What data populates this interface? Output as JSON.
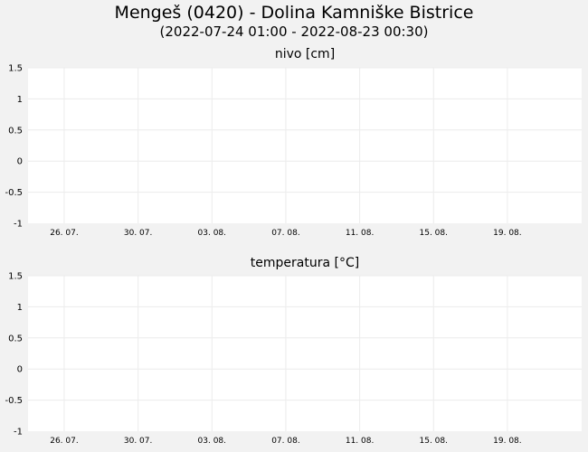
{
  "header": {
    "title": "Mengeš (0420) - Dolina Kamniške Bistrice",
    "subtitle": "(2022-07-24 01:00 - 2022-08-23 00:30)"
  },
  "chart_data": [
    {
      "type": "line",
      "title": "nivo [cm]",
      "ylim": [
        -1,
        1.5
      ],
      "yticks": [
        "1.5",
        "1",
        "0.5",
        "0",
        "-0.5",
        "-1"
      ],
      "xlim": [
        "2022-07-24 01:00",
        "2022-08-23 00:30"
      ],
      "xticks": [
        {
          "date": "2022-07-26",
          "label": "26. 07."
        },
        {
          "date": "2022-07-30",
          "label": "30. 07."
        },
        {
          "date": "2022-08-03",
          "label": "03. 08."
        },
        {
          "date": "2022-08-07",
          "label": "07. 08."
        },
        {
          "date": "2022-08-11",
          "label": "11. 08."
        },
        {
          "date": "2022-08-15",
          "label": "15. 08."
        },
        {
          "date": "2022-08-19",
          "label": "19. 08."
        }
      ],
      "grid": true,
      "series": []
    },
    {
      "type": "line",
      "title": "temperatura [°C]",
      "ylim": [
        -1,
        1.5
      ],
      "yticks": [
        "1.5",
        "1",
        "0.5",
        "0",
        "-0.5",
        "-1"
      ],
      "xlim": [
        "2022-07-24 01:00",
        "2022-08-23 00:30"
      ],
      "xticks": [
        {
          "date": "2022-07-26",
          "label": "26. 07."
        },
        {
          "date": "2022-07-30",
          "label": "30. 07."
        },
        {
          "date": "2022-08-03",
          "label": "03. 08."
        },
        {
          "date": "2022-08-07",
          "label": "07. 08."
        },
        {
          "date": "2022-08-11",
          "label": "11. 08."
        },
        {
          "date": "2022-08-15",
          "label": "15. 08."
        },
        {
          "date": "2022-08-19",
          "label": "19. 08."
        }
      ],
      "grid": true,
      "series": []
    }
  ]
}
